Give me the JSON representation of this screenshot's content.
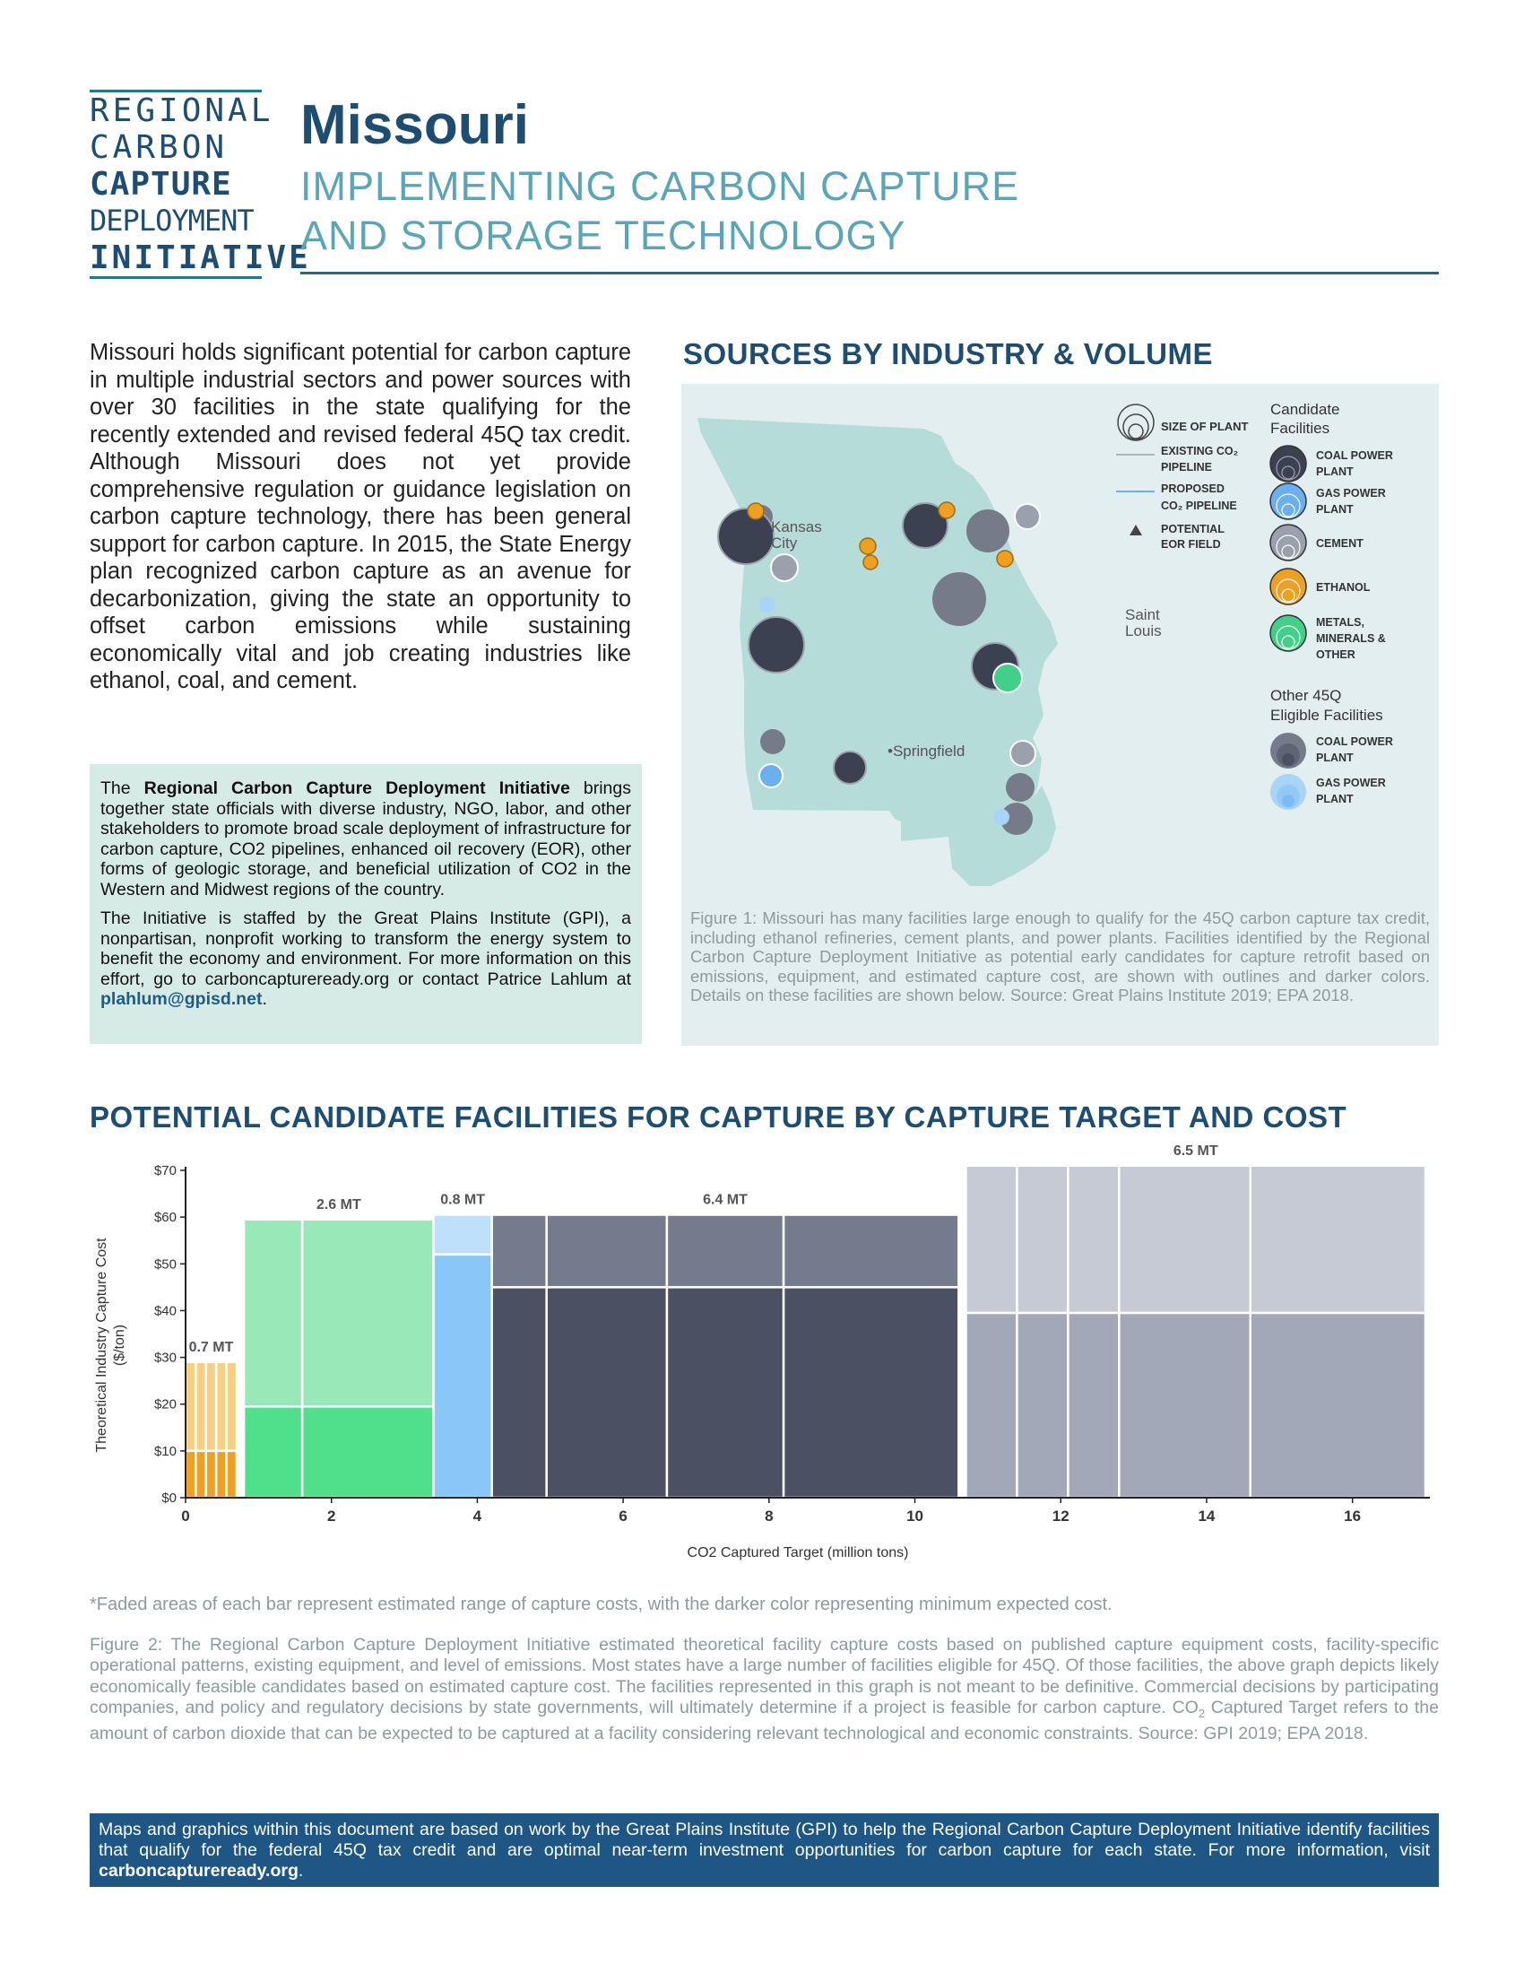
{
  "logo": {
    "line1": "REGIONAL",
    "line2": "CARBON",
    "line3": "CAPTURE",
    "line4": "DEPLOYMENT",
    "line5": "INITIATIVE"
  },
  "header": {
    "title": "Missouri",
    "subtitle_line1": "IMPLEMENTING CARBON CAPTURE",
    "subtitle_line2": "AND STORAGE TECHNOLOGY"
  },
  "intro": "Missouri holds significant potential for carbon capture in multiple industrial sectors and power sources with over 30 facilities in the state qualifying for the recently extended and revised federal 45Q tax credit. Although Missouri does not yet provide comprehensive regulation or guidance legislation on carbon capture technology, there has been general support for carbon capture. In 2015, the State Energy plan recognized carbon capture as an avenue for decarbonization, giving the state an opportunity to offset carbon emissions while sustaining economically vital and job creating industries like ethanol, coal, and cement.",
  "infobox": {
    "p1_pre": "The ",
    "p1_bold": "Regional Carbon Capture Deployment Initiative",
    "p1_post": " brings together state officials with diverse industry, NGO, labor, and other stakeholders to promote broad scale deployment of infrastructure for carbon capture, CO2 pipelines, enhanced oil recovery (EOR), other forms of geologic storage, and beneficial utilization of CO2 in the Western and Midwest regions of the country.",
    "p2_pre": "The Initiative is staffed by the Great Plains Institute (GPI), a nonpartisan, nonprofit working to transform the energy system to benefit the economy and environment. For more information on this effort, go to carboncaptureready.org or contact Patrice Lahlum at ",
    "p2_email": "plahlum@gpisd.net",
    "p2_post": "."
  },
  "map": {
    "title": "SOURCES BY INDUSTRY & VOLUME",
    "cities": {
      "kansas_city_1": "Kansas",
      "kansas_city_2": "City",
      "saint_louis_1": "Saint",
      "saint_louis_2": "Louis",
      "springfield": "•Springfield"
    },
    "legend": {
      "size": "SIZE OF PLANT",
      "existing_1": "EXISTING CO₂",
      "existing_2": "PIPELINE",
      "proposed_1": "PROPOSED",
      "proposed_2": "CO₂ PIPELINE",
      "eor_1": "POTENTIAL",
      "eor_2": "EOR FIELD",
      "candidate_1": "Candidate",
      "candidate_2": "Facilities",
      "coal_1": "COAL POWER",
      "coal_2": "PLANT",
      "gas_1": "GAS POWER",
      "gas_2": "PLANT",
      "cement": "CEMENT",
      "ethanol": "ETHANOL",
      "metals_1": "METALS,",
      "metals_2": "MINERALS &",
      "metals_3": "OTHER",
      "other_1": "Other 45Q",
      "other_2": "Eligible Facilities",
      "ocoal_1": "COAL POWER",
      "ocoal_2": "PLANT",
      "ogas_1": "GAS POWER",
      "ogas_2": "PLANT"
    },
    "colors": {
      "coal": "#3c4151",
      "gas": "#6ab0f0",
      "cement": "#9aa0ac",
      "ethanol": "#f0a020",
      "metals": "#40d088",
      "other_coal": "#757b88",
      "other_gas": "#a8d4f7",
      "state": "#b5dcd8"
    },
    "caption": "Figure 1: Missouri has many facilities large enough to qualify for the 45Q carbon capture tax credit, including ethanol refineries, cement plants, and power plants. Facilities identified by the Regional Carbon Capture Deployment Initiative as potential early candidates for capture retrofit based on emissions, equipment, and estimated capture cost, are shown with outlines and darker colors. Details on these facilities are shown below. Source: Great Plains Institute 2019; EPA 2018."
  },
  "chart_title": "POTENTIAL CANDIDATE FACILITIES FOR CAPTURE BY CAPTURE TARGET AND COST",
  "chart_data": {
    "type": "bar",
    "xlabel": "CO2 Captured Target (million tons)",
    "ylabel_line1": "Theoretical Industry Capture Cost",
    "ylabel_line2": "($/ton)",
    "xlim": [
      0,
      17
    ],
    "ylim": [
      0,
      70
    ],
    "x_ticks": [
      "0",
      "2",
      "4",
      "6",
      "8",
      "10",
      "12",
      "14",
      "16"
    ],
    "y_ticks": [
      "$0",
      "$10",
      "$20",
      "$30",
      "$40",
      "$50",
      "$60",
      "$70"
    ],
    "groups": [
      {
        "label": "0.7 MT",
        "dark": "#f0a020",
        "light": "#f7cf82",
        "facilities": [
          {
            "x0": 0.0,
            "x1": 0.14,
            "min": 10,
            "max": 29
          },
          {
            "x0": 0.14,
            "x1": 0.28,
            "min": 10,
            "max": 29
          },
          {
            "x0": 0.28,
            "x1": 0.42,
            "min": 10,
            "max": 29
          },
          {
            "x0": 0.42,
            "x1": 0.56,
            "min": 10,
            "max": 29
          },
          {
            "x0": 0.56,
            "x1": 0.7,
            "min": 10,
            "max": 29
          }
        ]
      },
      {
        "label": "2.6 MT",
        "dark": "#50e08c",
        "light": "#98e8b8",
        "facilities": [
          {
            "x0": 0.8,
            "x1": 1.6,
            "min": 19.5,
            "max": 59.5
          },
          {
            "x0": 1.6,
            "x1": 3.4,
            "min": 19.5,
            "max": 59.5
          }
        ]
      },
      {
        "label": "0.8 MT",
        "dark": "#8ac6f8",
        "light": "#bfe0fa",
        "facilities": [
          {
            "x0": 3.4,
            "x1": 4.2,
            "min": 52,
            "max": 60.5
          }
        ]
      },
      {
        "label": "6.4 MT",
        "dark": "#4b5062",
        "light": "#737b8c",
        "facilities": [
          {
            "x0": 4.2,
            "x1": 4.95,
            "min": 45,
            "max": 60.5
          },
          {
            "x0": 4.95,
            "x1": 6.6,
            "min": 45,
            "max": 60.5
          },
          {
            "x0": 6.6,
            "x1": 8.2,
            "min": 45,
            "max": 60.5
          },
          {
            "x0": 8.2,
            "x1": 10.6,
            "min": 45,
            "max": 60.5
          }
        ]
      },
      {
        "label": "6.5 MT",
        "dark": "#a2a8b8",
        "light": "#c5cad4",
        "facilities": [
          {
            "x0": 10.7,
            "x1": 11.4,
            "min": 39.5,
            "max": 71
          },
          {
            "x0": 11.4,
            "x1": 12.1,
            "min": 39.5,
            "max": 71
          },
          {
            "x0": 12.1,
            "x1": 12.8,
            "min": 39.5,
            "max": 71
          },
          {
            "x0": 12.8,
            "x1": 14.6,
            "min": 39.5,
            "max": 71
          },
          {
            "x0": 14.6,
            "x1": 17.0,
            "min": 39.5,
            "max": 71
          }
        ]
      }
    ]
  },
  "chart_note": "*Faded areas of each bar represent estimated range of capture costs, with the darker color representing minimum expected cost.",
  "figure2_pre": "Figure 2: The Regional Carbon Capture Deployment Initiative estimated theoretical facility capture costs based on published capture equipment costs, facility-specific operational patterns, existing equipment, and level of emissions. Most states have a large number of facilities eligible for 45Q. Of those facilities, the above graph depicts likely economically feasible candidates based on estimated capture cost. The facilities represented in this graph is not meant to be definitive. Commercial decisions by participating companies, and policy and regulatory decisions by state governments, will ultimately determine if a project is feasible for carbon capture. CO",
  "figure2_sub": "2",
  "figure2_post": " Captured Target  refers to the amount of carbon dioxide that can be expected to be captured at a facility considering relevant technological and economic constraints. Source: GPI 2019; EPA 2018.",
  "footer_pre": "Maps and graphics within this document are based on work by the Great Plains Institute (GPI) to help the Regional Carbon Capture Deployment Initiative identify facilities that qualify for the federal 45Q tax credit and are optimal near-term investment opportunities for carbon capture for each state. For more information, visit ",
  "footer_link": "carboncaptureready.org",
  "footer_post": "."
}
